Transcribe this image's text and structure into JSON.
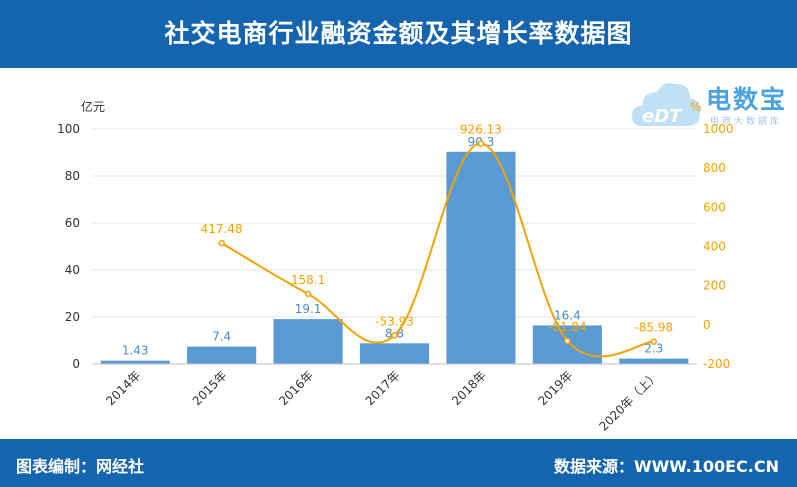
{
  "header": {
    "title": "社交电商行业融资金额及其增长率数据图"
  },
  "footer": {
    "left": "图表编制：网经社",
    "right": "数据来源：WWW.100EC.CN"
  },
  "logo": {
    "brand": "电数宝",
    "sub": "电商大数据库",
    "mark": "eDT"
  },
  "chart_data": {
    "type": "bar",
    "categories": [
      "2014年",
      "2015年",
      "2016年",
      "2017年",
      "2018年",
      "2019年",
      "2020年（上）"
    ],
    "series": [
      {
        "values": [
          1.43,
          7.4,
          19.1,
          8.8,
          90.3,
          16.4,
          2.3
        ],
        "type": "bar",
        "axis": "left",
        "color": "#5b9bd5"
      },
      {
        "values": [
          null,
          417.48,
          158.1,
          -53.93,
          926.13,
          -81.84,
          -85.98
        ],
        "type": "line",
        "axis": "right",
        "color": "#f5a200"
      }
    ],
    "y_left": {
      "label": "亿元",
      "ticks": [
        0,
        20,
        40,
        60,
        80,
        100
      ],
      "range": [
        0,
        100
      ]
    },
    "y_right": {
      "label": "%",
      "ticks": [
        -200,
        0,
        200,
        400,
        600,
        800,
        1000
      ],
      "range": [
        -200,
        1000
      ]
    },
    "grid": true
  }
}
